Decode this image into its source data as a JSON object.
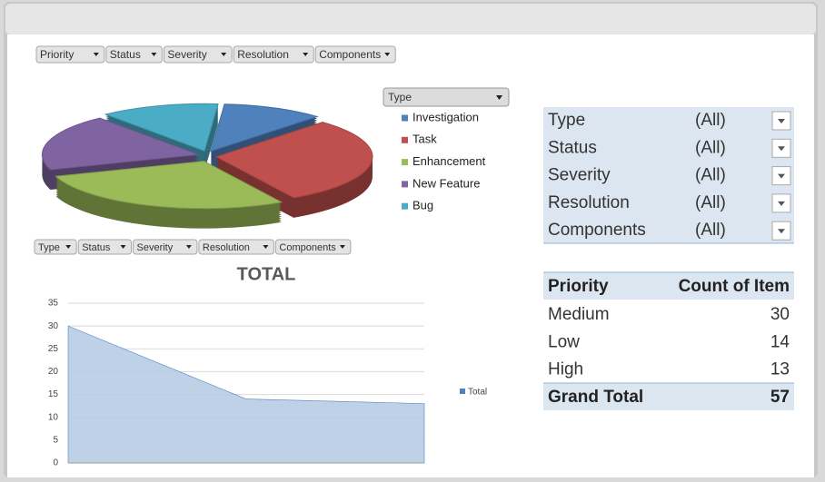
{
  "chart_data": [
    {
      "type": "pie",
      "field_buttons": [
        "Priority",
        "Status",
        "Severity",
        "Resolution",
        "Components"
      ],
      "legend_title": "Type",
      "categories": [
        "Investigation",
        "Task",
        "Enhancement",
        "New Feature",
        "Bug"
      ],
      "values": [
        6,
        17,
        16,
        11,
        7
      ],
      "colors": [
        "#4f81bd",
        "#c0504d",
        "#9bbb59",
        "#8064a2",
        "#4bacc6"
      ]
    },
    {
      "type": "area",
      "field_buttons": [
        "Type",
        "Status",
        "Severity",
        "Resolution",
        "Components"
      ],
      "title": "TOTAL",
      "categories": [
        null,
        null,
        null
      ],
      "series": [
        {
          "name": "Total",
          "color": "#b8cce4",
          "values": [
            30,
            14,
            13
          ]
        }
      ],
      "ylim": [
        0,
        35
      ],
      "yticks": [
        0,
        5,
        10,
        15,
        20,
        25,
        30,
        35
      ],
      "grid": true
    }
  ],
  "filter_table": {
    "rows": [
      {
        "field": "Type",
        "value": "(All)"
      },
      {
        "field": "Status",
        "value": "(All)"
      },
      {
        "field": "Severity",
        "value": "(All)"
      },
      {
        "field": "Resolution",
        "value": "(All)"
      },
      {
        "field": "Components",
        "value": "(All)"
      }
    ]
  },
  "pivot_table": {
    "headers": [
      "Priority",
      "Count of Item"
    ],
    "rows": [
      [
        "Medium",
        30
      ],
      [
        "Low",
        14
      ],
      [
        "High",
        13
      ]
    ],
    "total": [
      "Grand Total",
      57
    ]
  }
}
